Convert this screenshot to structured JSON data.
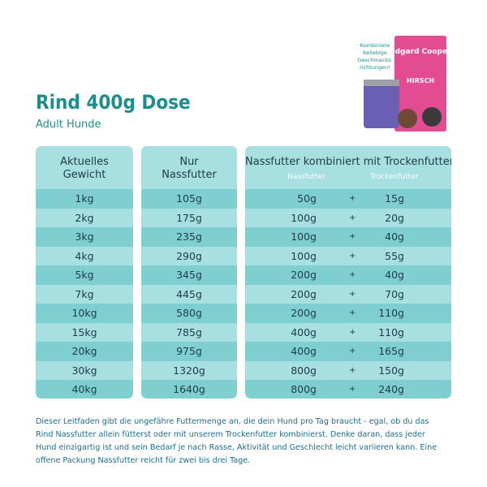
{
  "header": {
    "title": "Rind 400g Dose",
    "subtitle": "Adult Hunde"
  },
  "promo": {
    "callout": [
      "Kombiniere",
      "beliebige",
      "Geschmacks-",
      "richtungen!"
    ],
    "brand": "edgard Cooper",
    "product": "HIRSCH"
  },
  "table": {
    "columns": [
      "Aktuelles Gewicht",
      "Nur Nassfutter",
      "Nassfutter kombiniert mit Trockenfutter"
    ],
    "subcolumns": [
      "Nassfutter",
      "Trockenfutter"
    ],
    "plus": "+",
    "rows": [
      [
        "1kg",
        "105g",
        "50g",
        "15g"
      ],
      [
        "2kg",
        "175g",
        "100g",
        "20g"
      ],
      [
        "3kg",
        "235g",
        "100g",
        "40g"
      ],
      [
        "4kg",
        "290g",
        "100g",
        "55g"
      ],
      [
        "5kg",
        "345g",
        "200g",
        "40g"
      ],
      [
        "7kg",
        "445g",
        "200g",
        "70g"
      ],
      [
        "10kg",
        "580g",
        "200g",
        "110g"
      ],
      [
        "15kg",
        "785g",
        "400g",
        "110g"
      ],
      [
        "20kg",
        "975g",
        "400g",
        "165g"
      ],
      [
        "30kg",
        "1320g",
        "800g",
        "150g"
      ],
      [
        "40kg",
        "1640g",
        "800g",
        "240g"
      ]
    ]
  },
  "footer": {
    "lines": [
      "Dieser Leitfaden gibt die ungefähre Futtermenge an, die dein Hund pro Tag braucht - egal, ob du das",
      "Rind Nassfutter allein fütterst oder mit unserem Trockenfutter kombinierst. Denke daran, dass jeder",
      "Hund einzigartig ist und sein Bedarf je nach Rasse, Aktivität und Geschlecht leicht variieren kann. Eine",
      "offene Packung Nassfutter reicht für zwei bis drei Tage."
    ]
  }
}
